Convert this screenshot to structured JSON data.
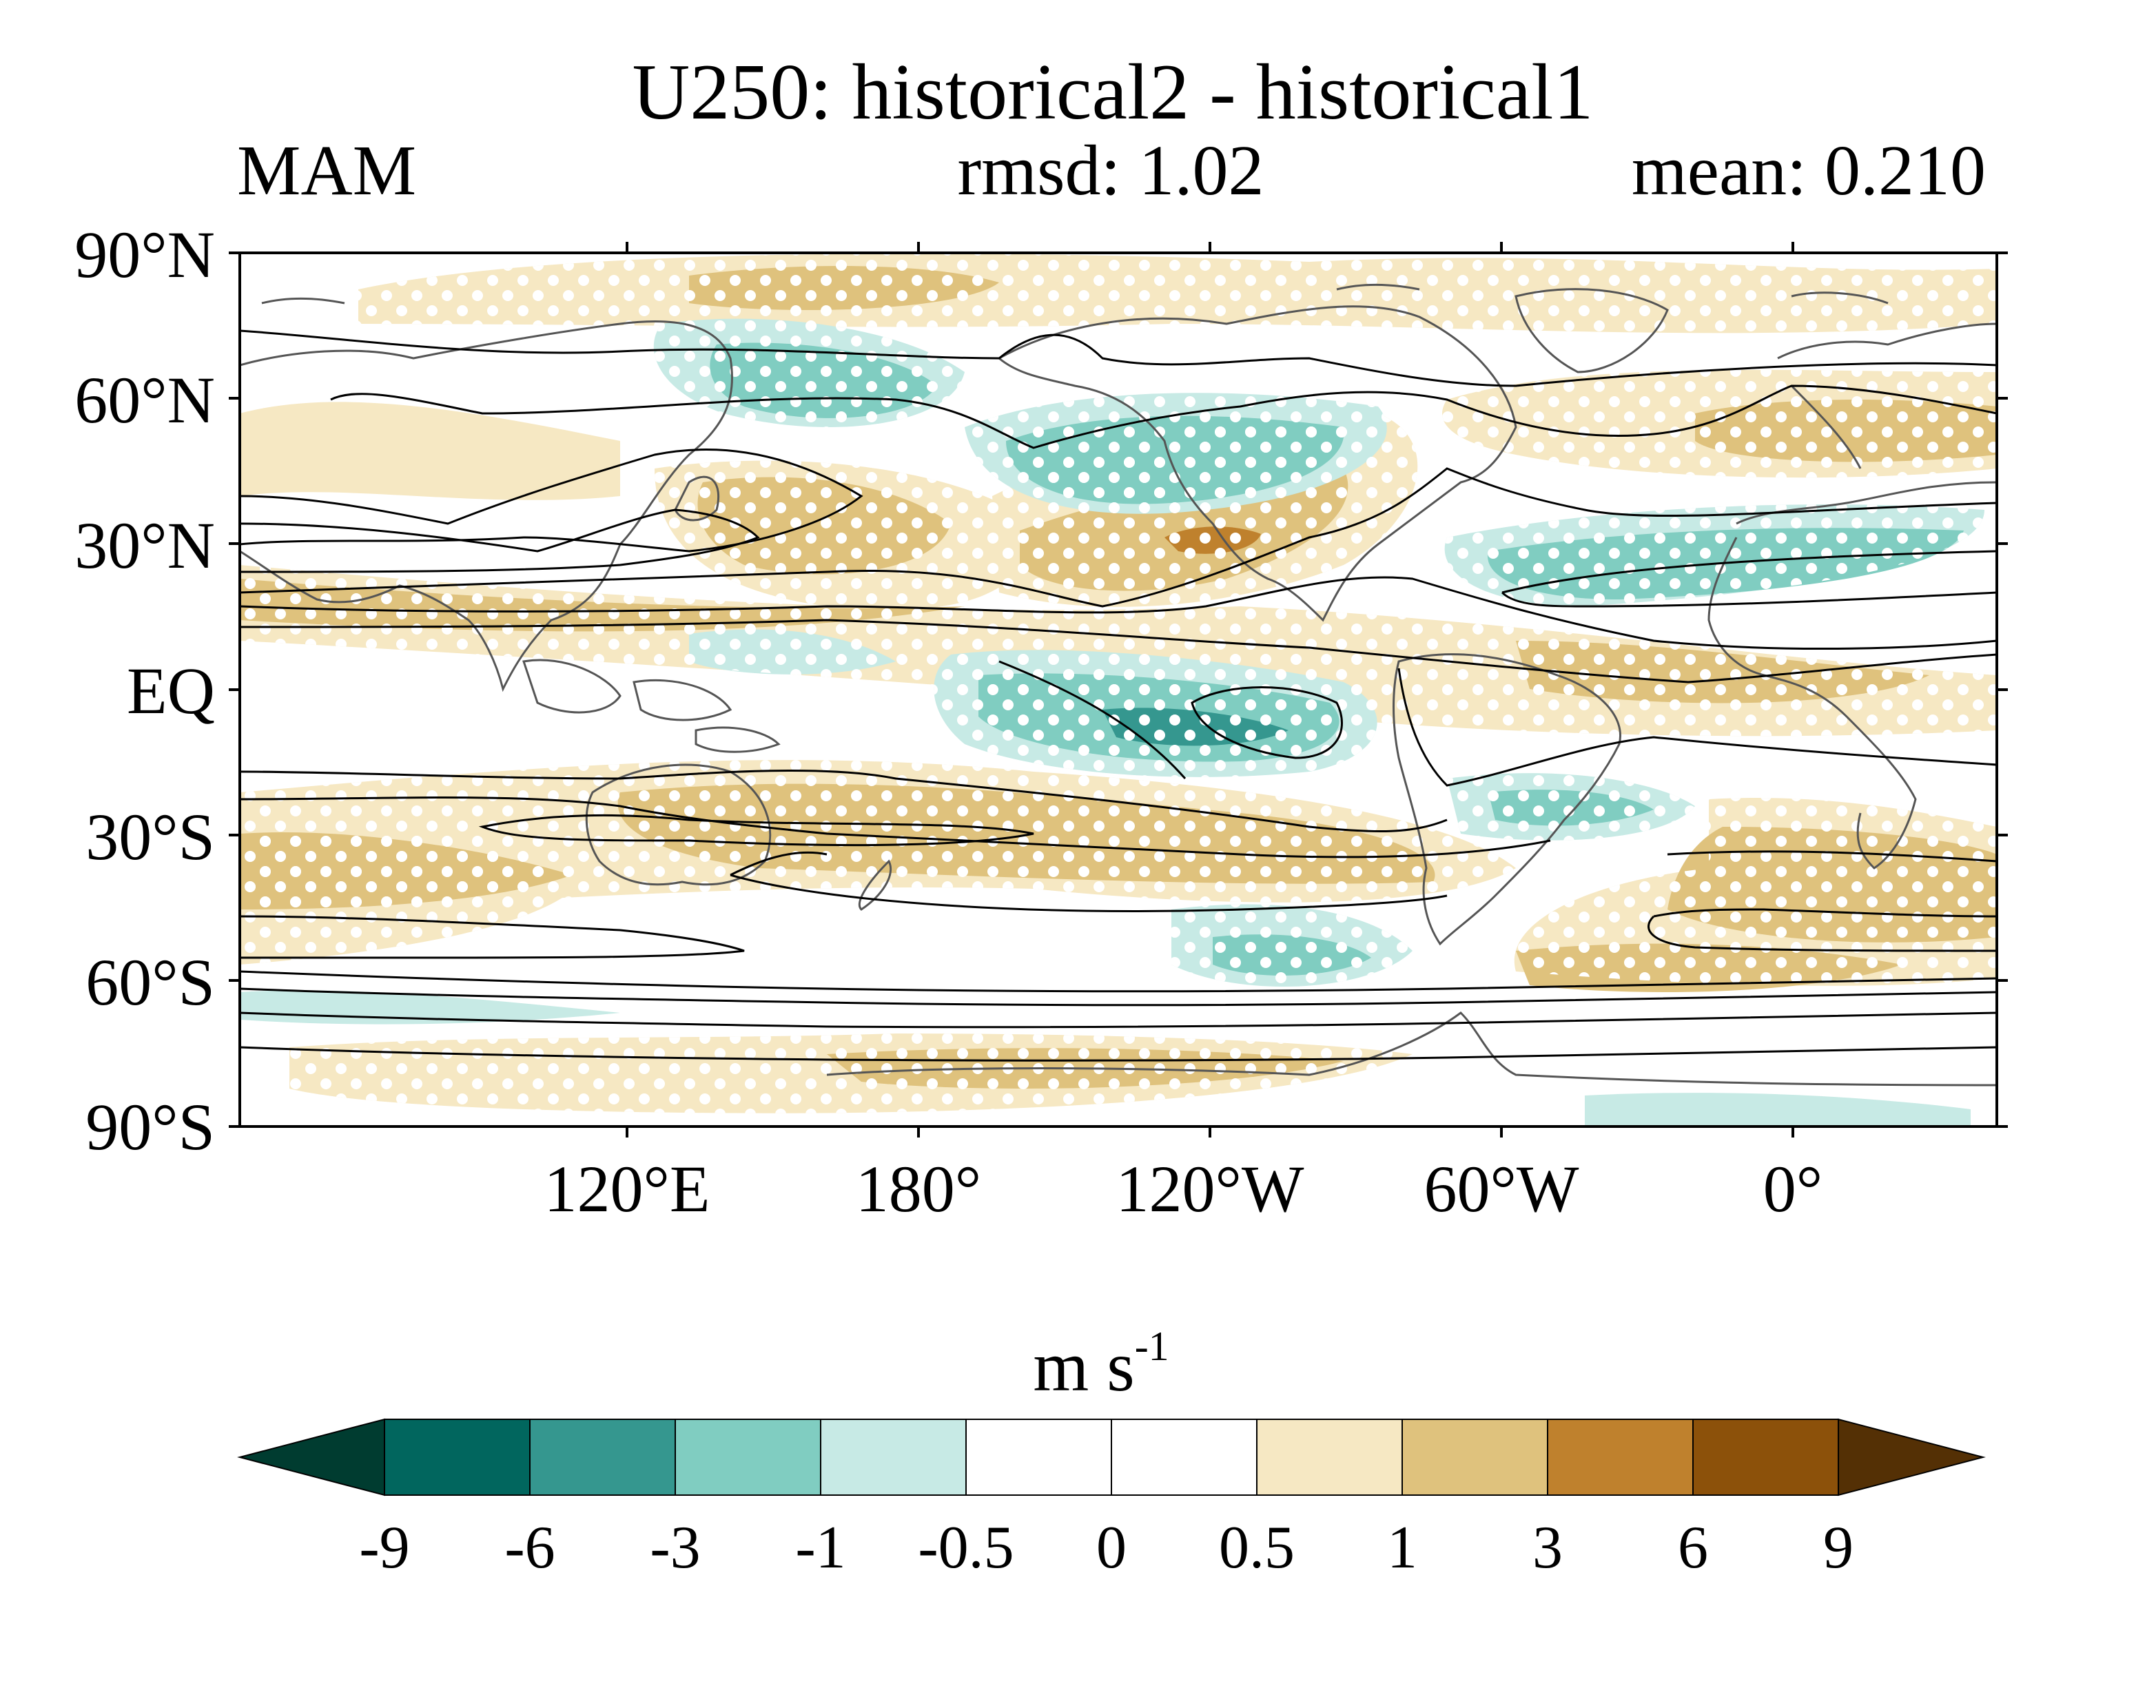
{
  "figure": {
    "title": "U250: historical2 - historical1",
    "season": "MAM",
    "rmsd_label": "rmsd: 1.02",
    "mean_label": "mean: 0.210"
  },
  "map": {
    "lat_ticks": [
      "90°N",
      "60°N",
      "30°N",
      "EQ",
      "30°S",
      "60°S",
      "90°S"
    ],
    "lon_ticks": [
      "120°E",
      "180°",
      "120°W",
      "60°W",
      "0°"
    ],
    "stippling": "white dots mark significant differences"
  },
  "colorbar": {
    "units_base": "m s",
    "units_exp": "-1",
    "levels": [
      "-9",
      "-6",
      "-3",
      "-1",
      "-0.5",
      "0",
      "0.5",
      "1",
      "3",
      "6",
      "9"
    ],
    "colors": [
      "#003c30",
      "#01665e",
      "#35978f",
      "#80cdc1",
      "#c7eae5",
      "#ffffff",
      "#ffffff",
      "#f6e8c3",
      "#dfc27d",
      "#bf812d",
      "#8c510a",
      "#543005"
    ]
  }
}
